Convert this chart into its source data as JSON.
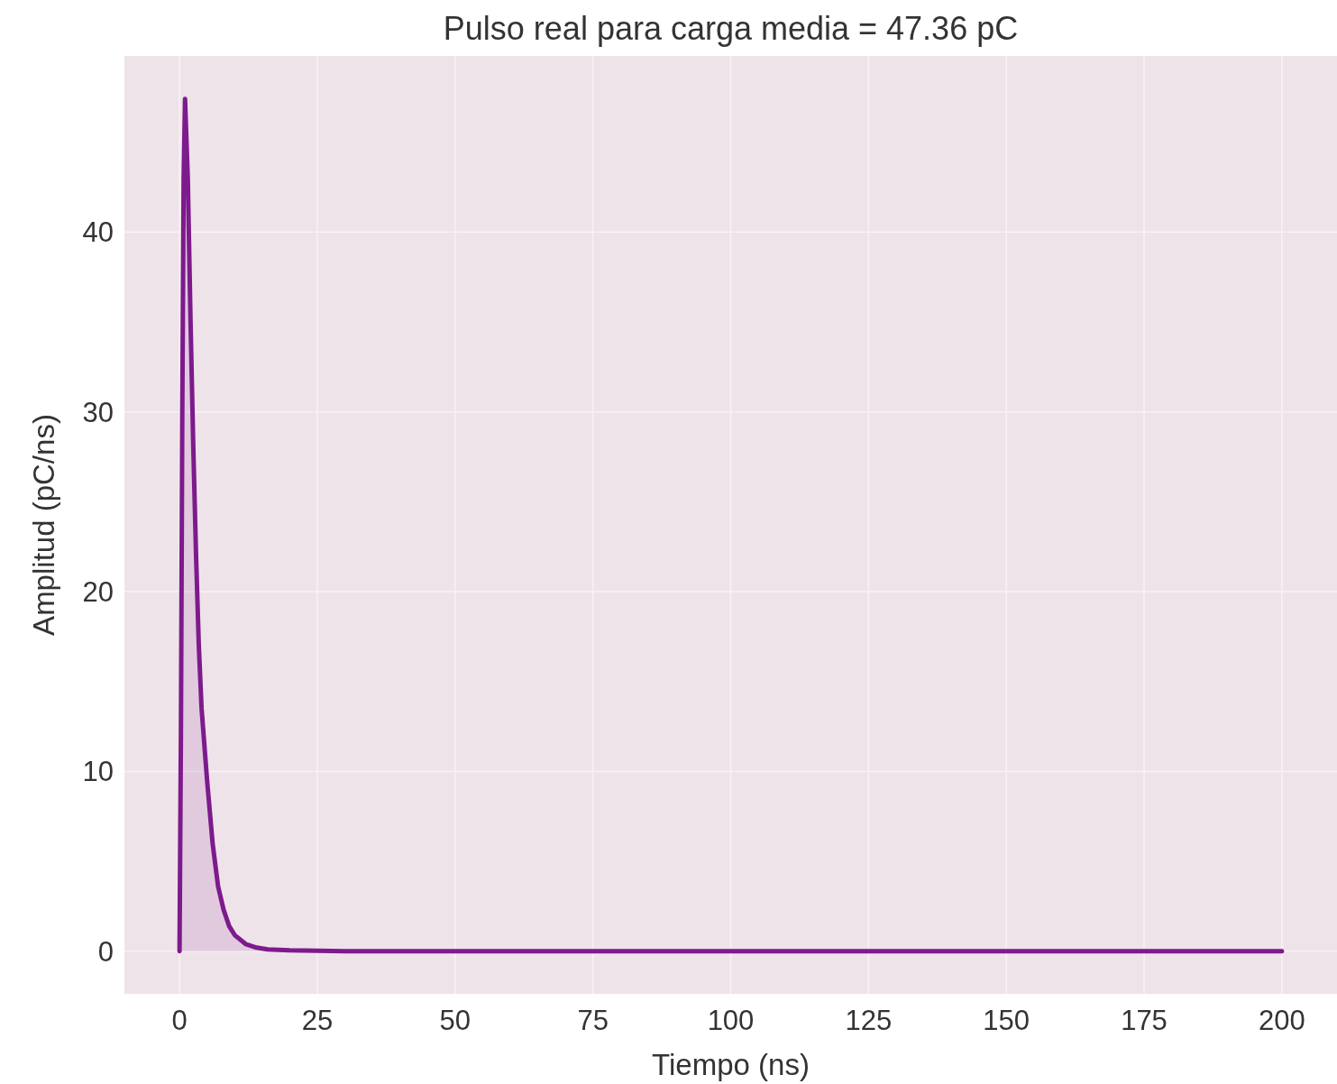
{
  "chart_data": {
    "type": "area",
    "title": "Pulso real para carga media = 47.36 pC",
    "xlabel": "Tiempo (ns)",
    "ylabel": "Amplitud (pC/ns)",
    "x": [
      0,
      0.25,
      0.5,
      0.75,
      1,
      1.5,
      2,
      2.5,
      3,
      3.5,
      4,
      5,
      6,
      7,
      8,
      9,
      10,
      12,
      14,
      16,
      20,
      30,
      50,
      100,
      150,
      200
    ],
    "series": [
      {
        "color": "#7d1a8c",
        "values": [
          0,
          12,
          30,
          43,
          47.4,
          43,
          35,
          28,
          22,
          17,
          13.5,
          9.5,
          6,
          3.6,
          2.3,
          1.4,
          0.9,
          0.4,
          0.2,
          0.1,
          0.05,
          0,
          0,
          0,
          0,
          0
        ]
      }
    ],
    "xlim": [
      -10,
      210
    ],
    "ylim": [
      -2.37,
      49.8
    ],
    "xticks": [
      0,
      25,
      50,
      75,
      100,
      125,
      150,
      175,
      200
    ],
    "yticks": [
      0,
      10,
      20,
      30,
      40
    ],
    "grid": true
  }
}
